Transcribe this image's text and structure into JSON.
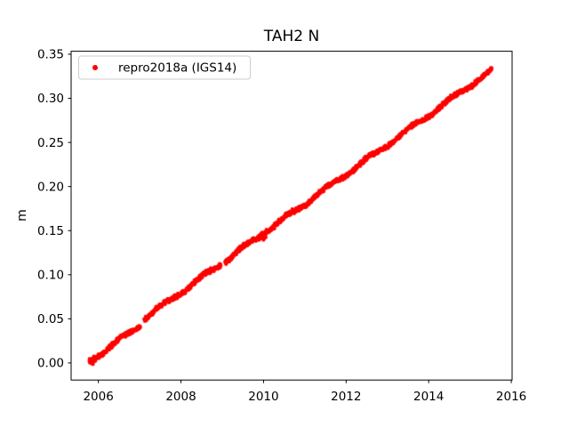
{
  "window": {
    "background": "#ffffff"
  },
  "chart_data": {
    "type": "scatter",
    "title": "TAH2 N",
    "xlabel": "",
    "ylabel": "m",
    "grid": false,
    "xlim": [
      2005.34,
      2016.02
    ],
    "ylim": [
      -0.0194,
      0.3534
    ],
    "xticks": {
      "values": [
        2006,
        2008,
        2010,
        2012,
        2014,
        2016
      ],
      "labels": [
        "2006",
        "2008",
        "2010",
        "2012",
        "2014",
        "2016"
      ]
    },
    "yticks": {
      "values": [
        0.0,
        0.05,
        0.1,
        0.15,
        0.2,
        0.25,
        0.3,
        0.35
      ],
      "labels": [
        "0.00",
        "0.05",
        "0.10",
        "0.15",
        "0.20",
        "0.25",
        "0.30",
        "0.35"
      ]
    },
    "legend": {
      "position": "upper-left",
      "border_color": "#cccccc",
      "background": "#ffffff",
      "entries": [
        {
          "label": "repro2018a (IGS14)",
          "marker": "dot",
          "color": "#ff0000"
        }
      ]
    },
    "series": [
      {
        "name": "repro2018a (IGS14)",
        "color": "#ff0000",
        "marker": "dot",
        "marker_diameter_px": 4,
        "t_start": 2005.78,
        "t_end": 2015.53,
        "point_step_yr": 0.005,
        "scatter_halfwidth_m": 0.0032,
        "sample_points": [
          [
            2005.78,
            0.002
          ],
          [
            2006.0,
            0.009
          ],
          [
            2006.5,
            0.026
          ],
          [
            2007.0,
            0.042
          ],
          [
            2007.5,
            0.063
          ],
          [
            2008.0,
            0.079
          ],
          [
            2008.5,
            0.096
          ],
          [
            2009.0,
            0.112
          ],
          [
            2009.5,
            0.13
          ],
          [
            2010.0,
            0.146
          ],
          [
            2010.5,
            0.163
          ],
          [
            2011.0,
            0.18
          ],
          [
            2011.5,
            0.196
          ],
          [
            2012.0,
            0.213
          ],
          [
            2012.5,
            0.23
          ],
          [
            2013.0,
            0.247
          ],
          [
            2013.5,
            0.264
          ],
          [
            2014.0,
            0.281
          ],
          [
            2014.5,
            0.296
          ],
          [
            2015.0,
            0.314
          ],
          [
            2015.53,
            0.332
          ]
        ],
        "trend": {
          "t0": 2005.78,
          "intercept_m": 0.0015,
          "slope_m_per_yr": 0.0335,
          "offset_t": 2007.07,
          "offset_dy_m": 0.004,
          "seasonal_amp_m": 0.002,
          "seasonal_phase_yr": 2005.3
        },
        "gaps": [
          [
            2007.02,
            2007.11
          ],
          [
            2008.97,
            2009.07
          ]
        ],
        "anomalies": [
          {
            "t_range": [
              2005.78,
              2005.92
            ],
            "extra_spread_factor": 1.8
          },
          {
            "t_range": [
              2009.95,
              2010.08
            ],
            "extra_spread_factor": 2.2
          }
        ]
      }
    ]
  }
}
